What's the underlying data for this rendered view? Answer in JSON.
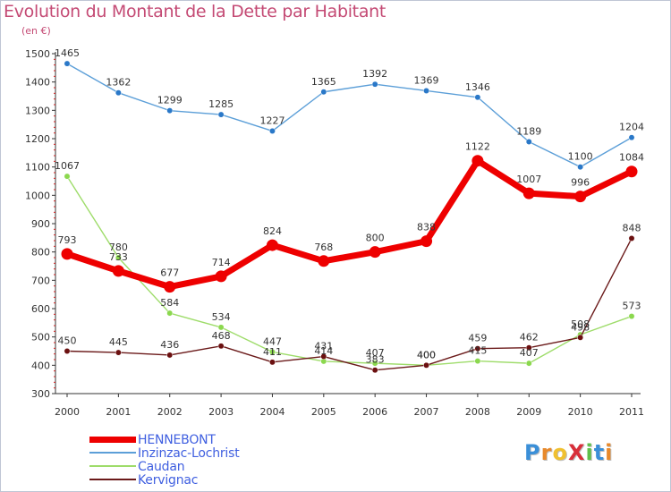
{
  "title": "Evolution du Montant de la Dette par Habitant",
  "subtitle": "(en €)",
  "chart_data": {
    "type": "line",
    "x": [
      "2000",
      "2001",
      "2002",
      "2003",
      "2004",
      "2005",
      "2006",
      "2007",
      "2008",
      "2009",
      "2010",
      "2011"
    ],
    "ylim": [
      300,
      1500
    ],
    "yticks": [
      300,
      400,
      500,
      600,
      700,
      800,
      900,
      1000,
      1100,
      1200,
      1300,
      1400,
      1500
    ],
    "grid": false,
    "legend_position": "bottom-left",
    "series": [
      {
        "name": "HENNEBONT",
        "color": "#ee0000",
        "values": [
          793,
          733,
          677,
          714,
          824,
          768,
          800,
          838,
          1122,
          1007,
          996,
          1084
        ],
        "labels": [
          "793",
          "733",
          "677",
          "714",
          "824",
          "768",
          "800",
          "838",
          "1122",
          "1007",
          "996",
          "1084"
        ]
      },
      {
        "name": "Inzinzac-Lochrist",
        "color": "#5c9fd8",
        "values": [
          1465,
          1362,
          1299,
          1285,
          1227,
          1365,
          1392,
          1369,
          1346,
          1189,
          1100,
          1204
        ],
        "labels": [
          "1465",
          "1362",
          "1299",
          "1285",
          "1227",
          "1365",
          "1392",
          "1369",
          "1346",
          "1189",
          "1100",
          "1204"
        ]
      },
      {
        "name": "Caudan",
        "color": "#9edc6a",
        "values": [
          1067,
          780,
          584,
          534,
          447,
          414,
          407,
          400,
          415,
          407,
          508,
          573
        ],
        "labels": [
          "1067",
          "780",
          "584",
          "534",
          "447",
          "414",
          "407",
          "400",
          "415",
          "407",
          "508",
          "573"
        ]
      },
      {
        "name": "Kervignac",
        "color": "#6b1a1a",
        "values": [
          450,
          445,
          436,
          468,
          411,
          431,
          383,
          400,
          459,
          462,
          498,
          848
        ],
        "labels": [
          "450",
          "445",
          "436",
          "468",
          "411",
          "431",
          "383",
          "400",
          "459",
          "462",
          "498",
          "848"
        ]
      }
    ]
  },
  "logo": {
    "text": "ProXiti",
    "letters": [
      "P",
      "r",
      "o",
      "X",
      "i",
      "t",
      "i"
    ],
    "colors": [
      "#3a8fd8",
      "#e8892b",
      "#f0c030",
      "#d82f3a",
      "#5fbf4a",
      "#3a8fd8",
      "#e8892b"
    ]
  }
}
